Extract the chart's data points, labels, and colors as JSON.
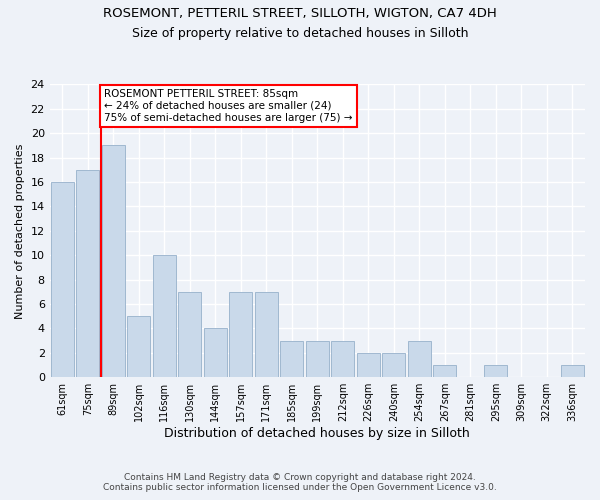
{
  "title1": "ROSEMONT, PETTERIL STREET, SILLOTH, WIGTON, CA7 4DH",
  "title2": "Size of property relative to detached houses in Silloth",
  "xlabel": "Distribution of detached houses by size in Silloth",
  "ylabel": "Number of detached properties",
  "categories": [
    "61sqm",
    "75sqm",
    "89sqm",
    "102sqm",
    "116sqm",
    "130sqm",
    "144sqm",
    "157sqm",
    "171sqm",
    "185sqm",
    "199sqm",
    "212sqm",
    "226sqm",
    "240sqm",
    "254sqm",
    "267sqm",
    "281sqm",
    "295sqm",
    "309sqm",
    "322sqm",
    "336sqm"
  ],
  "values": [
    16,
    17,
    19,
    5,
    10,
    7,
    4,
    7,
    7,
    3,
    3,
    3,
    2,
    2,
    3,
    1,
    0,
    1,
    0,
    0,
    1
  ],
  "bar_color": "#c9d9ea",
  "bar_edge_color": "#a0b8d0",
  "annotation_text": "ROSEMONT PETTERIL STREET: 85sqm\n← 24% of detached houses are smaller (24)\n75% of semi-detached houses are larger (75) →",
  "annotation_box_color": "white",
  "annotation_box_edge_color": "red",
  "vline_color": "red",
  "vline_x_index": 1.5,
  "ylim": [
    0,
    24
  ],
  "yticks": [
    0,
    2,
    4,
    6,
    8,
    10,
    12,
    14,
    16,
    18,
    20,
    22,
    24
  ],
  "footer1": "Contains HM Land Registry data © Crown copyright and database right 2024.",
  "footer2": "Contains public sector information licensed under the Open Government Licence v3.0.",
  "background_color": "#eef2f8",
  "grid_color": "white",
  "title1_fontsize": 9.5,
  "title2_fontsize": 9.0
}
